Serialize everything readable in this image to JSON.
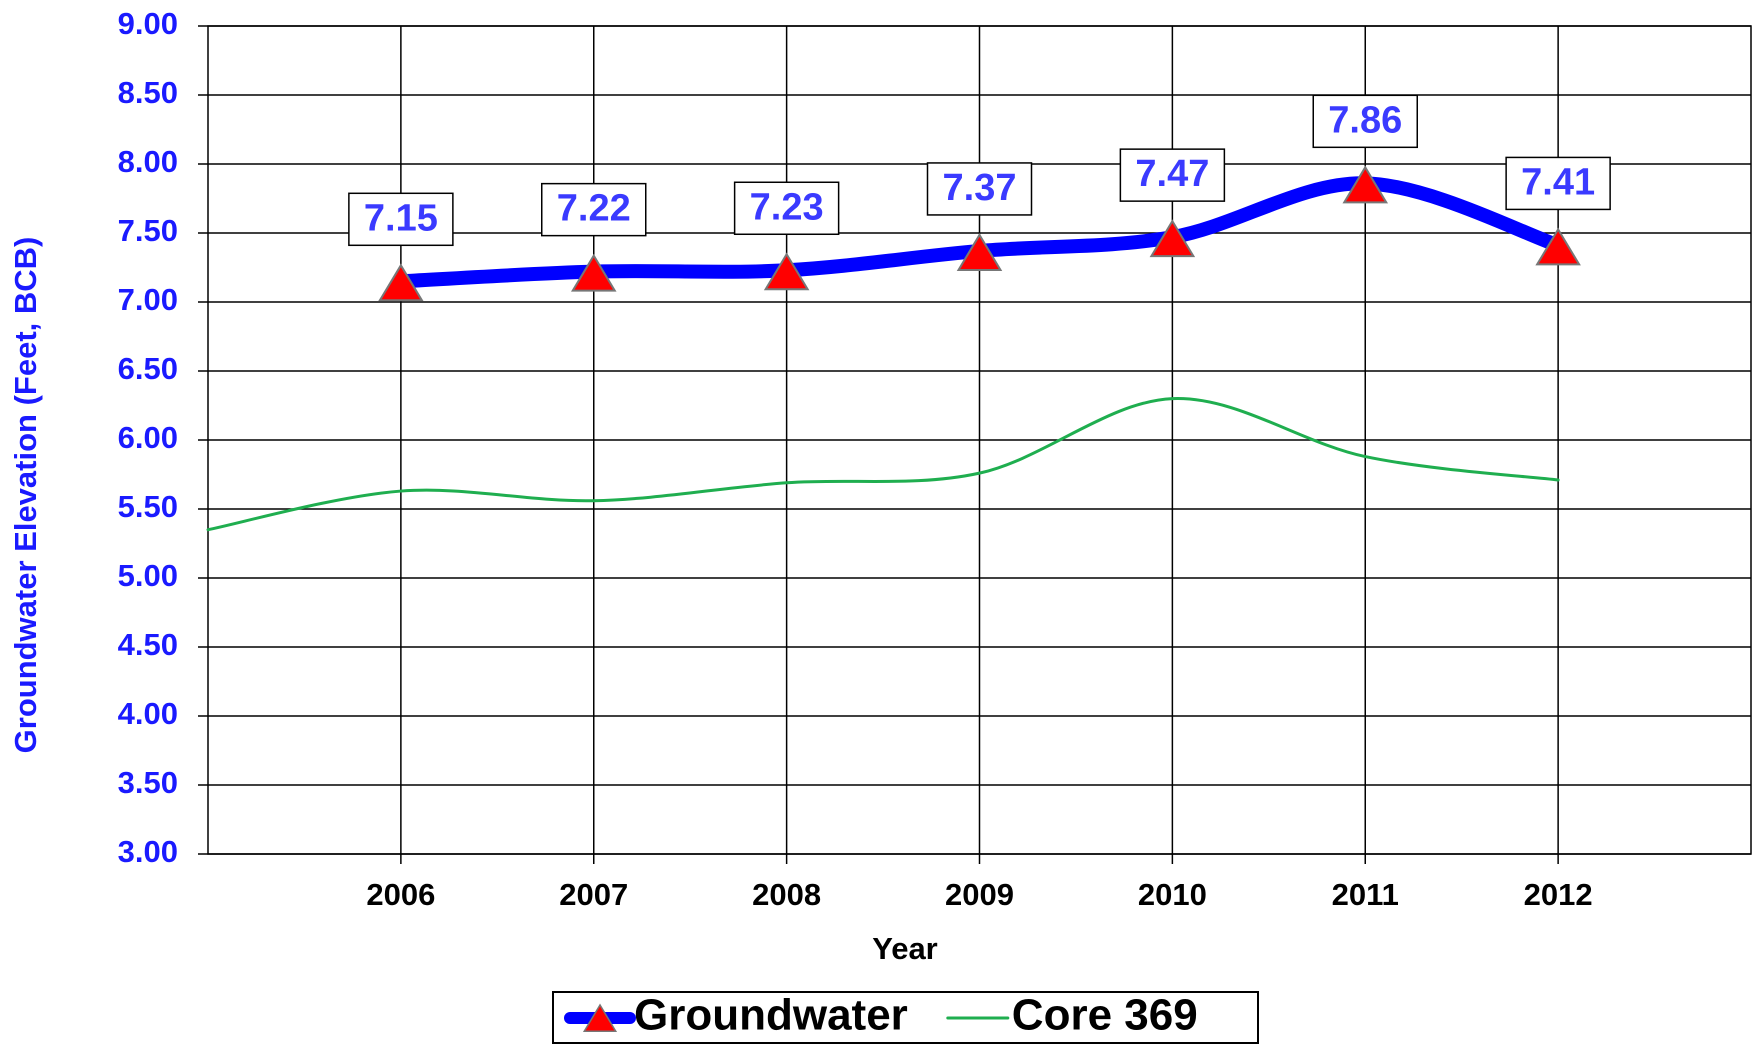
{
  "chart_data": {
    "type": "line",
    "x_label": "Year",
    "y_label": "Groundwater  Elevation  (Feet,  BCB)",
    "x": [
      2005,
      2006,
      2007,
      2008,
      2009,
      2010,
      2011,
      2012
    ],
    "xlim": [
      2005,
      2013
    ],
    "xticks": [
      2006,
      2007,
      2008,
      2009,
      2010,
      2011,
      2012
    ],
    "ylim": [
      3,
      9
    ],
    "yticks": [
      {
        "value": 3,
        "label": "3.00"
      },
      {
        "value": 3.5,
        "label": "3.50"
      },
      {
        "value": 4,
        "label": "4.00"
      },
      {
        "value": 4.5,
        "label": "4.50"
      },
      {
        "value": 5,
        "label": "5.00"
      },
      {
        "value": 5.5,
        "label": "5.50"
      },
      {
        "value": 6,
        "label": "6.00"
      },
      {
        "value": 6.5,
        "label": "6.50"
      },
      {
        "value": 7,
        "label": "7.00"
      },
      {
        "value": 7.5,
        "label": "7.50"
      },
      {
        "value": 8,
        "label": "8.00"
      },
      {
        "value": 8.5,
        "label": "8.50"
      },
      {
        "value": 9,
        "label": "9.00"
      }
    ],
    "grid": true,
    "legend": "bottom",
    "series": [
      {
        "name": "Groundwater",
        "color": "#0000ff",
        "marker": "triangle",
        "marker_color": "#ff0000",
        "data_labels": true,
        "values": [
          null,
          7.15,
          7.22,
          7.23,
          7.37,
          7.47,
          7.86,
          7.41
        ]
      },
      {
        "name": "Core 369",
        "color": "#1fae4f",
        "values": [
          5.35,
          5.63,
          5.56,
          5.69,
          5.76,
          6.3,
          5.88,
          5.71
        ]
      }
    ]
  }
}
